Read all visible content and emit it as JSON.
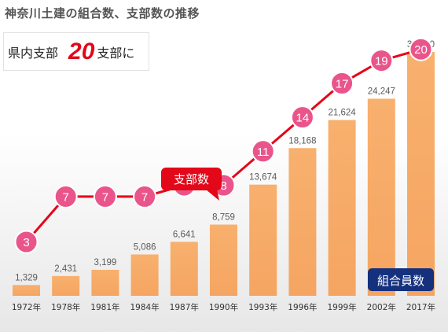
{
  "title": "神奈川土建の組合数、支部数の推移",
  "summary": {
    "prefix": "県内支部",
    "count": "20",
    "suffix": "支部に"
  },
  "chart_data": {
    "type": "bar",
    "categories": [
      "1972年",
      "1978年",
      "1981年",
      "1984年",
      "1987年",
      "1990年",
      "1993年",
      "1996年",
      "1999年",
      "2002年",
      "2017年"
    ],
    "series": [
      {
        "name": "組合員数",
        "type": "bar",
        "values": [
          1329,
          2431,
          3199,
          5086,
          6641,
          8759,
          13674,
          18168,
          21624,
          24247,
          30000
        ],
        "labels": [
          "1,329",
          "2,431",
          "3,199",
          "5,086",
          "6,641",
          "8,759",
          "13,674",
          "18,168",
          "21,624",
          "24,247",
          "30,000"
        ],
        "color": "#f7ae6a"
      },
      {
        "name": "支部数",
        "type": "line",
        "values": [
          3,
          7,
          7,
          7,
          8,
          8,
          11,
          14,
          17,
          19,
          20
        ],
        "line_color": "#e3071a",
        "marker_color": "#e9558a"
      }
    ],
    "bar_label_color": "#5a5a5a",
    "legend": [
      {
        "label": "支部数",
        "style": "red callout above line"
      },
      {
        "label": "組合員数",
        "style": "navy box bottom-right"
      }
    ],
    "grid": false
  }
}
